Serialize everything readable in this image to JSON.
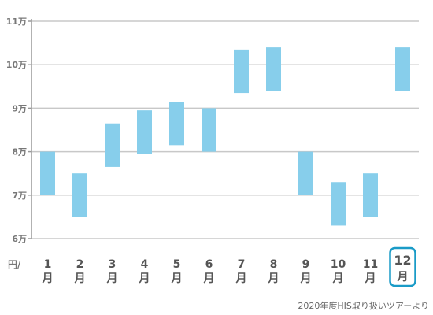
{
  "chart_data": {
    "type": "bar",
    "subtype": "floating-range",
    "title": "",
    "xlabel": "",
    "ylabel": "",
    "y_unit_label": "円/",
    "ylim": [
      60000,
      110000
    ],
    "y_ticks": [
      {
        "value": 60000,
        "label": "6万"
      },
      {
        "value": 70000,
        "label": "7万"
      },
      {
        "value": 80000,
        "label": "8万"
      },
      {
        "value": 90000,
        "label": "9万"
      },
      {
        "value": 100000,
        "label": "10万"
      },
      {
        "value": 110000,
        "label": "11万"
      }
    ],
    "categories": [
      {
        "num": "1",
        "unit": "月"
      },
      {
        "num": "2",
        "unit": "月"
      },
      {
        "num": "3",
        "unit": "月"
      },
      {
        "num": "4",
        "unit": "月"
      },
      {
        "num": "5",
        "unit": "月"
      },
      {
        "num": "6",
        "unit": "月"
      },
      {
        "num": "7",
        "unit": "月"
      },
      {
        "num": "8",
        "unit": "月"
      },
      {
        "num": "9",
        "unit": "月"
      },
      {
        "num": "10",
        "unit": "月"
      },
      {
        "num": "11",
        "unit": "月"
      },
      {
        "num": "12",
        "unit": "月"
      }
    ],
    "ranges": [
      [
        70000,
        80000
      ],
      [
        65000,
        75000
      ],
      [
        76500,
        86500
      ],
      [
        79500,
        89500
      ],
      [
        81500,
        91500
      ],
      [
        80000,
        90000
      ],
      [
        93500,
        103500
      ],
      [
        94000,
        104000
      ],
      [
        70000,
        80000
      ],
      [
        63000,
        73000
      ],
      [
        65000,
        75000
      ],
      [
        94000,
        104000
      ]
    ],
    "highlight_index": 11,
    "grid": true,
    "bar_color": "#87ceeb",
    "grid_color": "#c8c8c8",
    "axis_color": "#999999",
    "highlight_color": "#1a9bc7"
  },
  "source_note": "2020年度HIS取り扱いツアーより"
}
